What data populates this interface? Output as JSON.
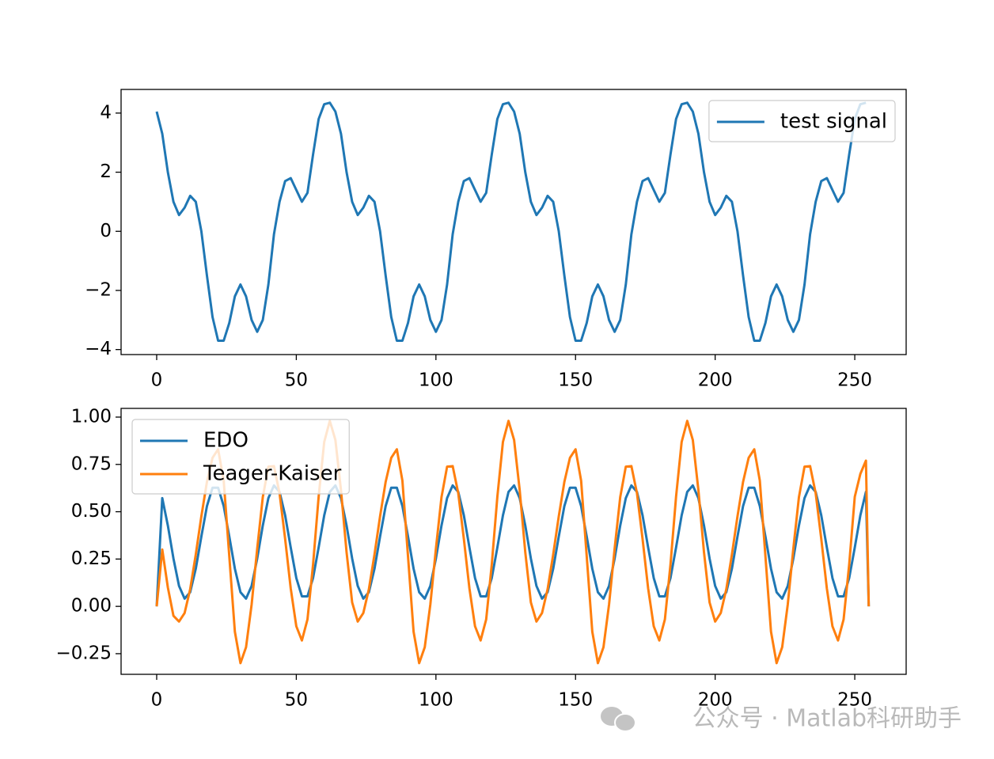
{
  "chart_data": [
    {
      "type": "line",
      "legend": "upper right",
      "x": [
        0,
        2,
        4,
        6,
        8,
        10,
        12,
        14,
        16,
        18,
        20,
        22,
        24,
        26,
        28,
        30,
        32,
        34,
        36,
        38,
        40,
        42,
        44,
        46,
        48,
        50,
        52,
        54,
        56,
        58,
        60,
        62,
        64,
        66,
        68,
        70,
        72,
        74,
        76,
        78,
        80,
        82,
        84,
        86,
        88,
        90,
        92,
        94,
        96,
        98,
        100,
        102,
        104,
        106,
        108,
        110,
        112,
        114,
        116,
        118,
        120,
        122,
        124,
        126,
        128,
        130,
        132,
        134,
        136,
        138,
        140,
        142,
        144,
        146,
        148,
        150,
        152,
        154,
        156,
        158,
        160,
        162,
        164,
        166,
        168,
        170,
        172,
        174,
        176,
        178,
        180,
        182,
        184,
        186,
        188,
        190,
        192,
        194,
        196,
        198,
        200,
        202,
        204,
        206,
        208,
        210,
        212,
        214,
        216,
        218,
        220,
        222,
        224,
        226,
        228,
        230,
        232,
        234,
        236,
        238,
        240,
        242,
        244,
        246,
        248,
        250,
        252,
        254
      ],
      "series": [
        {
          "name": "test signal",
          "color": "#1f77b4",
          "values": [
            4.05,
            3.3,
            2.0,
            1.0,
            0.55,
            0.8,
            1.2,
            1.0,
            0.0,
            -1.5,
            -2.9,
            -3.7,
            -3.7,
            -3.1,
            -2.2,
            -1.8,
            -2.2,
            -3.0,
            -3.4,
            -3.0,
            -1.8,
            -0.1,
            1.0,
            1.7,
            1.8,
            1.4,
            1.0,
            1.3,
            2.6,
            3.8,
            4.3,
            4.35,
            4.05,
            3.3,
            2.0,
            1.0,
            0.55,
            0.8,
            1.2,
            1.0,
            0.0,
            -1.5,
            -2.9,
            -3.7,
            -3.7,
            -3.1,
            -2.2,
            -1.8,
            -2.2,
            -3.0,
            -3.4,
            -3.0,
            -1.8,
            -0.1,
            1.0,
            1.7,
            1.8,
            1.4,
            1.0,
            1.3,
            2.6,
            3.8,
            4.3,
            4.35,
            4.05,
            3.3,
            2.0,
            1.0,
            0.55,
            0.8,
            1.2,
            1.0,
            0.0,
            -1.5,
            -2.9,
            -3.7,
            -3.7,
            -3.1,
            -2.2,
            -1.8,
            -2.2,
            -3.0,
            -3.4,
            -3.0,
            -1.8,
            -0.1,
            1.0,
            1.7,
            1.8,
            1.4,
            1.0,
            1.3,
            2.6,
            3.8,
            4.3,
            4.35,
            4.05,
            3.3,
            2.0,
            1.0,
            0.55,
            0.8,
            1.2,
            1.0,
            0.0,
            -1.5,
            -2.9,
            -3.7,
            -3.7,
            -3.1,
            -2.2,
            -1.8,
            -2.2,
            -3.0,
            -3.4,
            -3.0,
            -1.8,
            -0.1,
            1.0,
            1.7,
            1.8,
            1.4,
            1.0,
            1.3,
            2.6,
            3.8,
            4.3,
            4.35
          ]
        }
      ],
      "xlim": [
        -12.75,
        268.4
      ],
      "ylim": [
        -4.17,
        4.8
      ],
      "xticks": [
        0,
        50,
        100,
        150,
        200,
        250
      ],
      "yticks": [
        {
          "value": -4,
          "label": "−4"
        },
        {
          "value": -2,
          "label": "−2"
        },
        0,
        2,
        4
      ]
    },
    {
      "type": "line",
      "legend": "upper left",
      "x": [
        0,
        2,
        4,
        6,
        8,
        10,
        12,
        14,
        16,
        18,
        20,
        22,
        24,
        26,
        28,
        30,
        32,
        34,
        36,
        38,
        40,
        42,
        44,
        46,
        48,
        50,
        52,
        54,
        56,
        58,
        60,
        62,
        64,
        66,
        68,
        70,
        72,
        74,
        76,
        78,
        80,
        82,
        84,
        86,
        88,
        90,
        92,
        94,
        96,
        98,
        100,
        102,
        104,
        106,
        108,
        110,
        112,
        114,
        116,
        118,
        120,
        122,
        124,
        126,
        128,
        130,
        132,
        134,
        136,
        138,
        140,
        142,
        144,
        146,
        148,
        150,
        152,
        154,
        156,
        158,
        160,
        162,
        164,
        166,
        168,
        170,
        172,
        174,
        176,
        178,
        180,
        182,
        184,
        186,
        188,
        190,
        192,
        194,
        196,
        198,
        200,
        202,
        204,
        206,
        208,
        210,
        212,
        214,
        216,
        218,
        220,
        222,
        224,
        226,
        228,
        230,
        232,
        234,
        236,
        238,
        240,
        242,
        244,
        246,
        248,
        250,
        252,
        254,
        255
      ],
      "series": [
        {
          "name": "EDO",
          "color": "#1f77b4",
          "values": [
            0,
            0.572,
            0.427,
            0.253,
            0.108,
            0.041,
            0.075,
            0.199,
            0.369,
            0.53,
            0.627,
            0.627,
            0.53,
            0.369,
            0.199,
            0.075,
            0.041,
            0.108,
            0.253,
            0.427,
            0.572,
            0.639,
            0.605,
            0.481,
            0.311,
            0.15,
            0.053,
            0.053,
            0.15,
            0.311,
            0.481,
            0.605,
            0.639,
            0.572,
            0.427,
            0.253,
            0.108,
            0.041,
            0.075,
            0.199,
            0.369,
            0.53,
            0.627,
            0.627,
            0.53,
            0.369,
            0.199,
            0.075,
            0.041,
            0.108,
            0.253,
            0.427,
            0.572,
            0.639,
            0.605,
            0.481,
            0.311,
            0.15,
            0.053,
            0.053,
            0.15,
            0.311,
            0.481,
            0.605,
            0.639,
            0.572,
            0.427,
            0.253,
            0.108,
            0.041,
            0.075,
            0.199,
            0.369,
            0.53,
            0.627,
            0.627,
            0.53,
            0.369,
            0.199,
            0.075,
            0.041,
            0.108,
            0.253,
            0.427,
            0.572,
            0.639,
            0.605,
            0.481,
            0.311,
            0.15,
            0.053,
            0.053,
            0.15,
            0.311,
            0.481,
            0.605,
            0.639,
            0.572,
            0.427,
            0.253,
            0.108,
            0.041,
            0.075,
            0.199,
            0.369,
            0.53,
            0.627,
            0.627,
            0.53,
            0.369,
            0.199,
            0.075,
            0.041,
            0.108,
            0.253,
            0.427,
            0.572,
            0.639,
            0.605,
            0.481,
            0.311,
            0.15,
            0.053,
            0.053,
            0.15,
            0.311,
            0.481,
            0.605,
            0
          ]
        },
        {
          "name": "Teager-Kaiser",
          "color": "#ff7f0e",
          "values": [
            0,
            0.3,
            0.1,
            -0.05,
            -0.08,
            -0.035,
            0.091,
            0.274,
            0.476,
            0.658,
            0.785,
            0.83,
            0.664,
            0.265,
            -0.134,
            -0.3,
            -0.216,
            0.01,
            0.305,
            0.577,
            0.738,
            0.741,
            0.598,
            0.357,
            0.095,
            -0.105,
            -0.18,
            -0.069,
            0.221,
            0.579,
            0.869,
            0.98,
            0.879,
            0.614,
            0.286,
            0.021,
            -0.08,
            -0.035,
            0.091,
            0.274,
            0.476,
            0.658,
            0.785,
            0.83,
            0.664,
            0.265,
            -0.134,
            -0.3,
            -0.216,
            0.01,
            0.305,
            0.577,
            0.738,
            0.741,
            0.598,
            0.357,
            0.095,
            -0.105,
            -0.18,
            -0.069,
            0.221,
            0.579,
            0.869,
            0.98,
            0.879,
            0.614,
            0.286,
            0.021,
            -0.08,
            -0.035,
            0.091,
            0.274,
            0.476,
            0.658,
            0.785,
            0.83,
            0.664,
            0.265,
            -0.134,
            -0.3,
            -0.216,
            0.01,
            0.305,
            0.577,
            0.738,
            0.741,
            0.598,
            0.357,
            0.095,
            -0.105,
            -0.18,
            -0.069,
            0.221,
            0.579,
            0.869,
            0.98,
            0.879,
            0.614,
            0.286,
            0.021,
            -0.08,
            -0.035,
            0.091,
            0.274,
            0.476,
            0.658,
            0.785,
            0.83,
            0.664,
            0.265,
            -0.134,
            -0.3,
            -0.216,
            0.01,
            0.305,
            0.577,
            0.738,
            0.741,
            0.598,
            0.357,
            0.095,
            -0.105,
            -0.18,
            -0.069,
            0.221,
            0.579,
            0.7,
            0.77,
            0
          ]
        }
      ],
      "xlim": [
        -12.75,
        268.4
      ],
      "ylim": [
        -0.359,
        1.046
      ],
      "xticks": [
        0,
        50,
        100,
        150,
        200,
        250
      ],
      "yticks": [
        {
          "value": -0.25,
          "label": "−0.25"
        },
        {
          "value": 0,
          "label": "0.00"
        },
        {
          "value": 0.25,
          "label": "0.25"
        },
        {
          "value": 0.5,
          "label": "0.50"
        },
        {
          "value": 0.75,
          "label": "0.75"
        },
        {
          "value": 1,
          "label": "1.00"
        }
      ]
    }
  ],
  "watermark": "公众号 · Matlab科研助手"
}
